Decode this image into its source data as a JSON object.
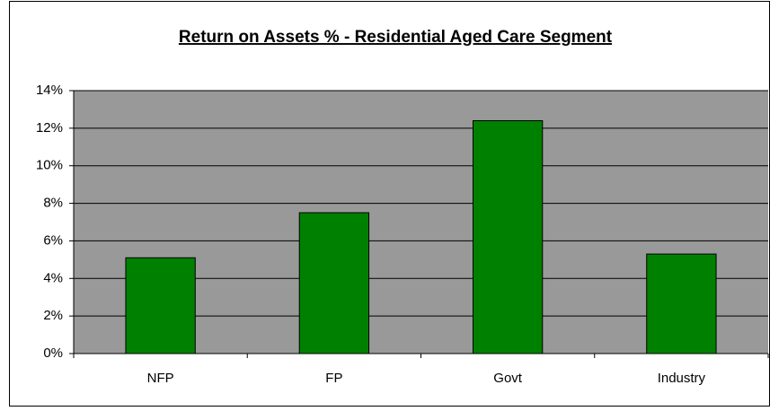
{
  "chart_data": {
    "type": "bar",
    "title": "Return on Assets % - Residential Aged Care Segment",
    "categories": [
      "NFP",
      "FP",
      "Govt",
      "Industry"
    ],
    "values": [
      5.1,
      7.5,
      12.4,
      5.3
    ],
    "color": "#008000",
    "ylim": [
      0,
      14
    ],
    "yticks": [
      {
        "value": 0,
        "label": "0%"
      },
      {
        "value": 2,
        "label": "2%"
      },
      {
        "value": 4,
        "label": "4%"
      },
      {
        "value": 6,
        "label": "6%"
      },
      {
        "value": 8,
        "label": "8%"
      },
      {
        "value": 10,
        "label": "10%"
      },
      {
        "value": 12,
        "label": "12%"
      },
      {
        "value": 14,
        "label": "14%"
      }
    ],
    "grid": true
  }
}
